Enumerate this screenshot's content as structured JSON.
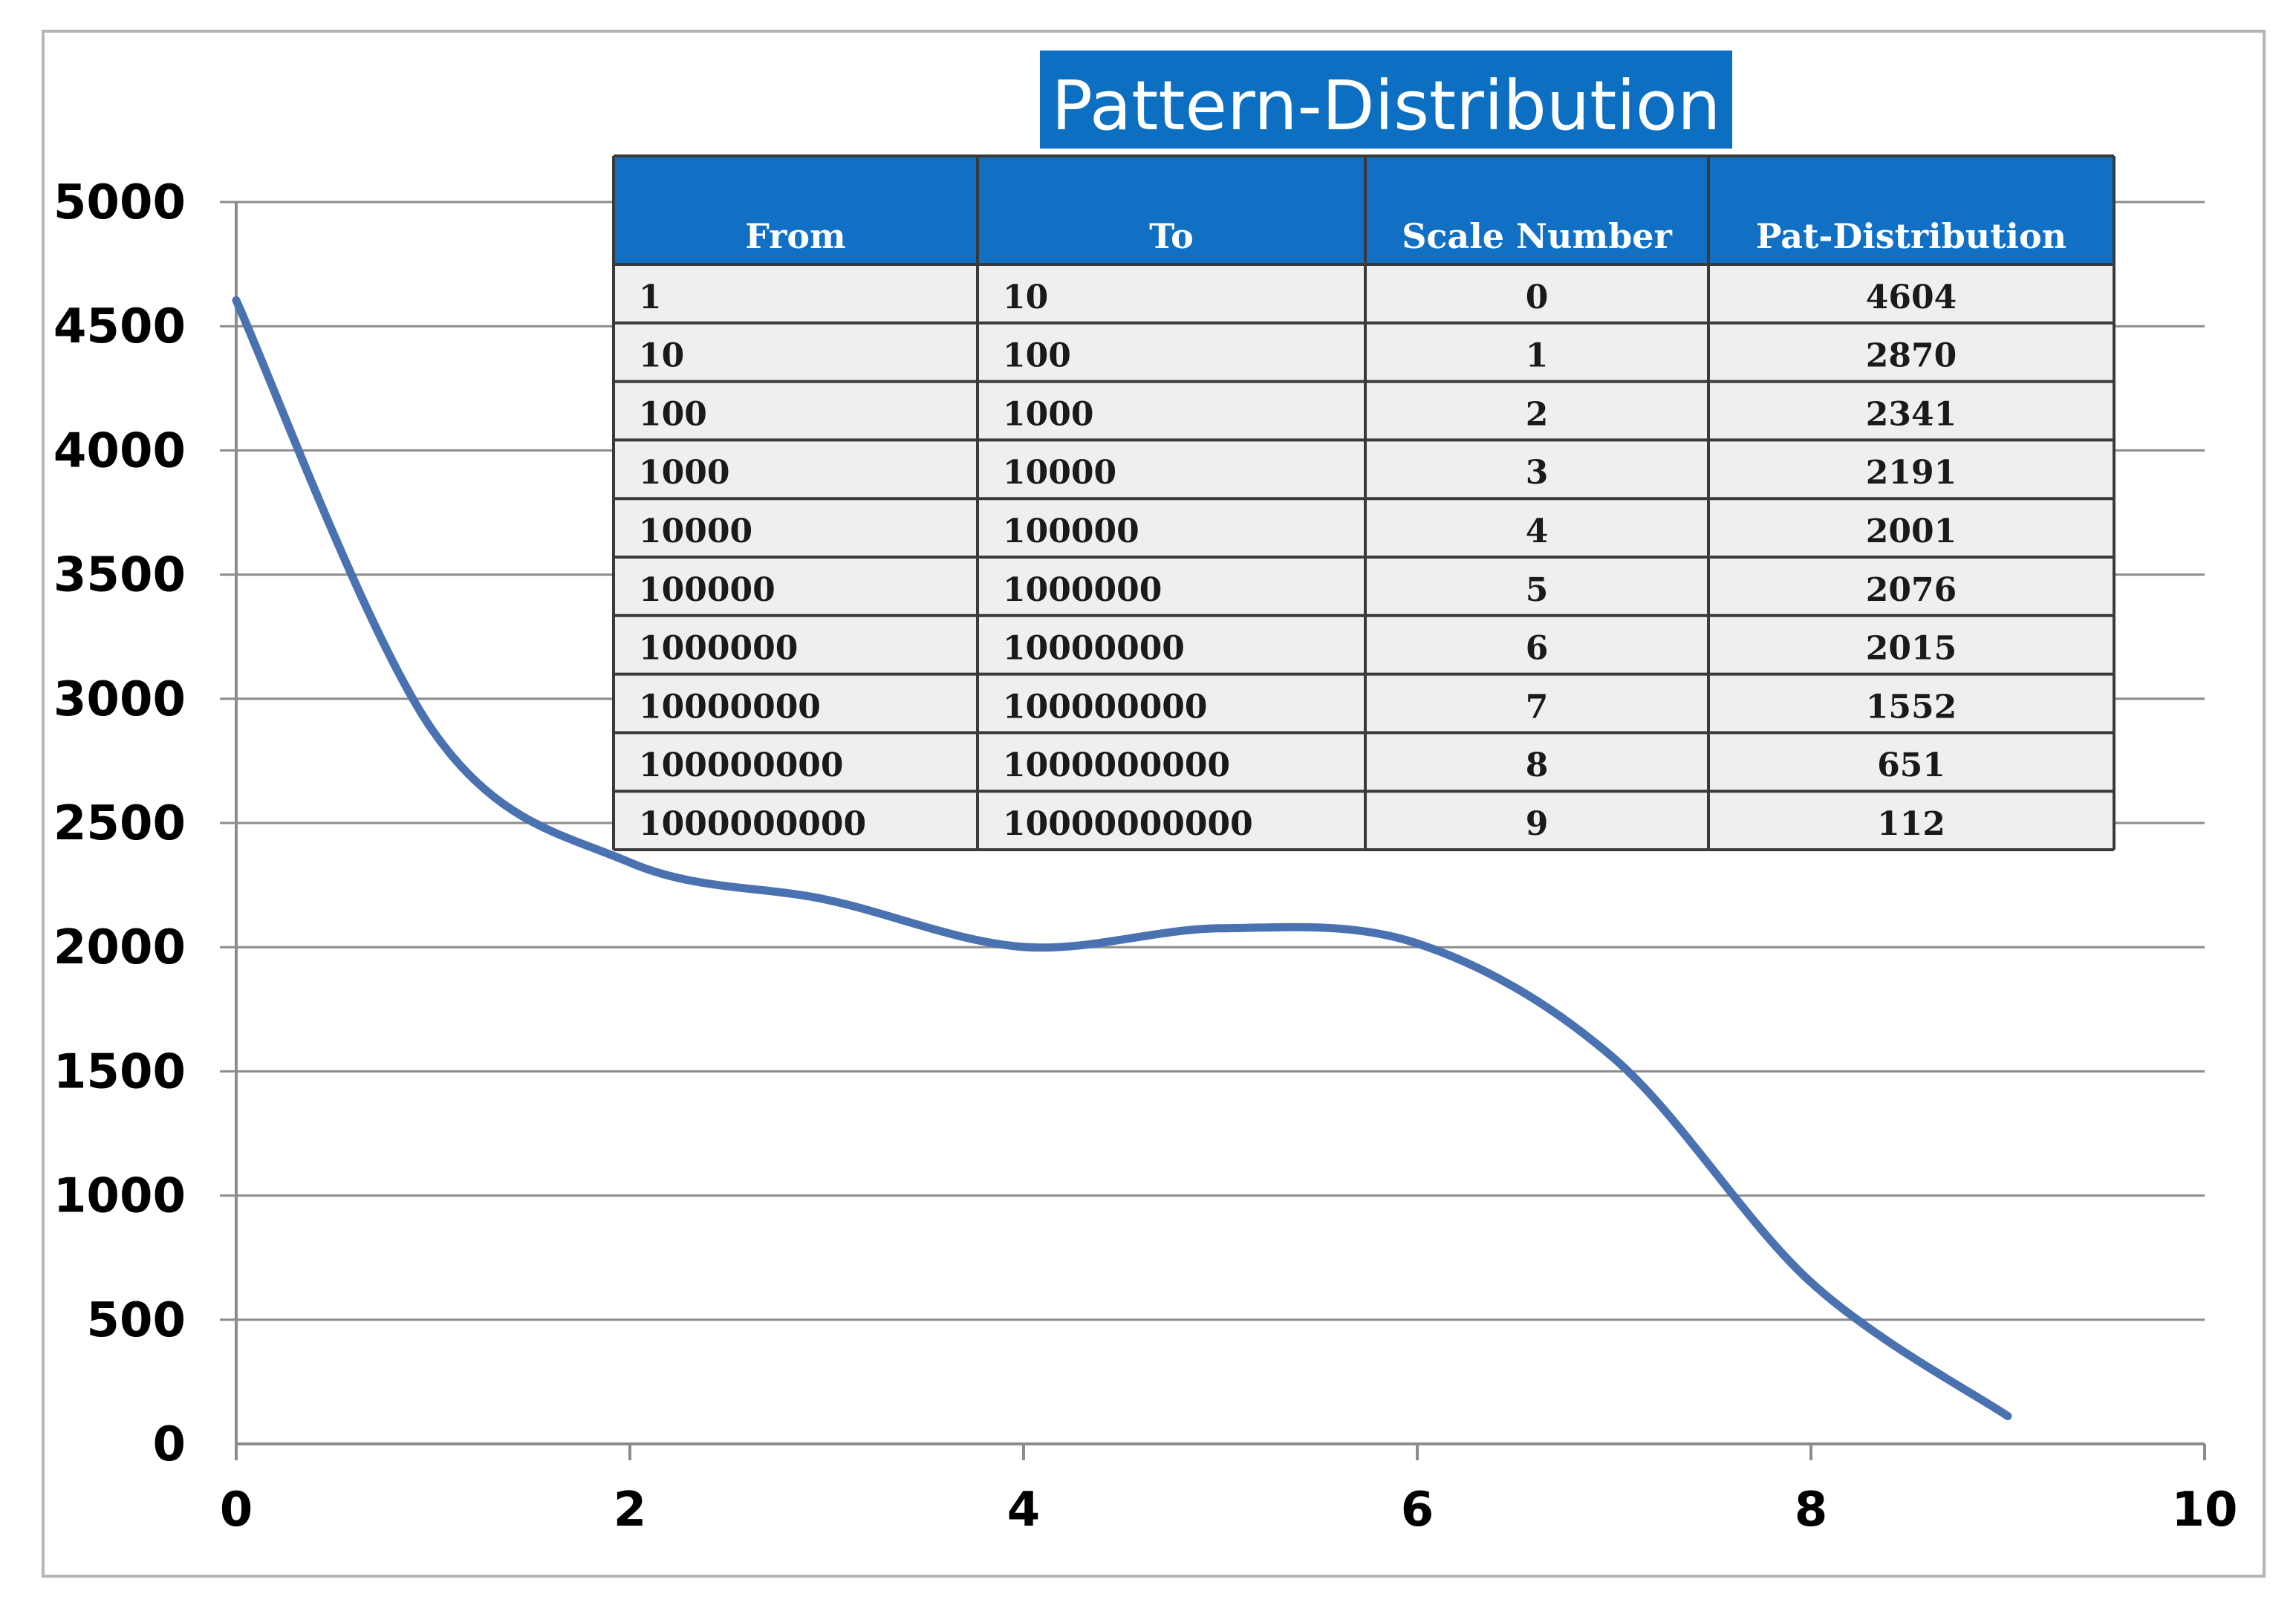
{
  "chart_data": {
    "type": "line",
    "title": "Pattern-Distribution",
    "xlabel": "",
    "ylabel": "",
    "x": [
      0,
      1,
      2,
      3,
      4,
      5,
      6,
      7,
      8,
      9
    ],
    "series": [
      {
        "values": [
          4604,
          2870,
          2341,
          2191,
          2001,
          2076,
          2015,
          1552,
          651,
          112
        ],
        "color": "#4a72b0"
      }
    ],
    "xlim": [
      0,
      10
    ],
    "ylim": [
      0,
      5000
    ],
    "xticks": [
      0,
      2,
      4,
      6,
      8,
      10
    ],
    "yticks": [
      0,
      500,
      1000,
      1500,
      2000,
      2500,
      3000,
      3500,
      4000,
      4500,
      5000
    ],
    "grid": true,
    "smooth": true,
    "legend": "none"
  },
  "table": {
    "headers": [
      "From",
      "To",
      "Scale Number",
      "Pat-Distribution"
    ],
    "rows": [
      [
        "1",
        "10",
        "0",
        "4604"
      ],
      [
        "10",
        "100",
        "1",
        "2870"
      ],
      [
        "100",
        "1000",
        "2",
        "2341"
      ],
      [
        "1000",
        "10000",
        "3",
        "2191"
      ],
      [
        "10000",
        "100000",
        "4",
        "2001"
      ],
      [
        "100000",
        "1000000",
        "5",
        "2076"
      ],
      [
        "1000000",
        "10000000",
        "6",
        "2015"
      ],
      [
        "10000000",
        "100000000",
        "7",
        "1552"
      ],
      [
        "100000000",
        "1000000000",
        "8",
        "651"
      ],
      [
        "1000000000",
        "10000000000",
        "9",
        "112"
      ]
    ],
    "header_color": "#1270c4",
    "row_color": "#efefef"
  }
}
